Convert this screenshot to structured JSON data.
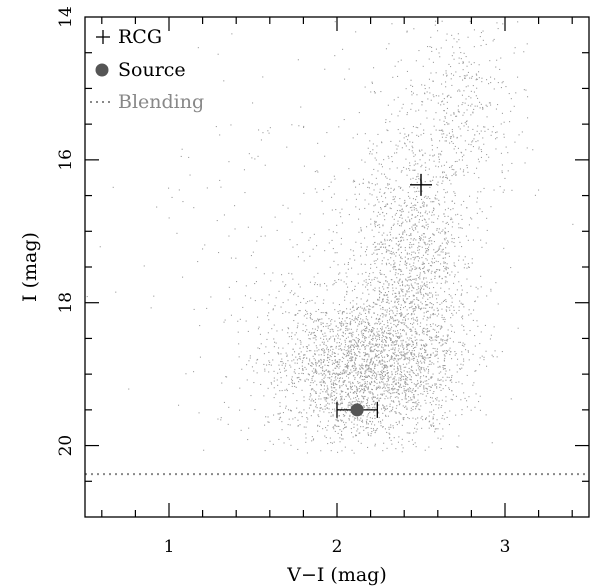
{
  "chart_data": {
    "type": "scatter",
    "title": "",
    "xlabel": "V−I (mag)",
    "ylabel": "I (mag)",
    "xlim": [
      0.5,
      3.5
    ],
    "ylim": [
      21.0,
      14.0
    ],
    "y_inverted": true,
    "grid": false,
    "legend_position": "top-left",
    "x_tick_labels": [
      "1",
      "2",
      "3"
    ],
    "y_tick_labels": [
      "14",
      "16",
      "18",
      "20"
    ],
    "legend": [
      {
        "label": "RCG",
        "marker": "plus"
      },
      {
        "label": "Source",
        "marker": "filled-circle"
      },
      {
        "label": "Blending",
        "marker": "dotted-line"
      }
    ],
    "rcg": {
      "x": 2.5,
      "y": 16.35
    },
    "source": {
      "x": 2.12,
      "y": 19.5,
      "x_err": 0.12
    },
    "blending": {
      "y": 20.4
    },
    "field_stars": {
      "description_note": "",
      "clusters": [
        {
          "cx": 2.15,
          "cy": 18.9,
          "sx": 0.28,
          "sy": 0.55,
          "n": 2600
        },
        {
          "cx": 2.45,
          "cy": 17.4,
          "sx": 0.17,
          "sy": 1.0,
          "n": 1500
        },
        {
          "cx": 2.75,
          "cy": 15.2,
          "sx": 0.18,
          "sy": 0.7,
          "n": 400
        },
        {
          "cx": 1.9,
          "cy": 17.0,
          "sx": 0.55,
          "sy": 1.4,
          "n": 300
        }
      ]
    },
    "colors": {
      "stars": "#9e9e9e",
      "source": "#555555",
      "blending": "#888888",
      "axes": "#000000"
    }
  }
}
